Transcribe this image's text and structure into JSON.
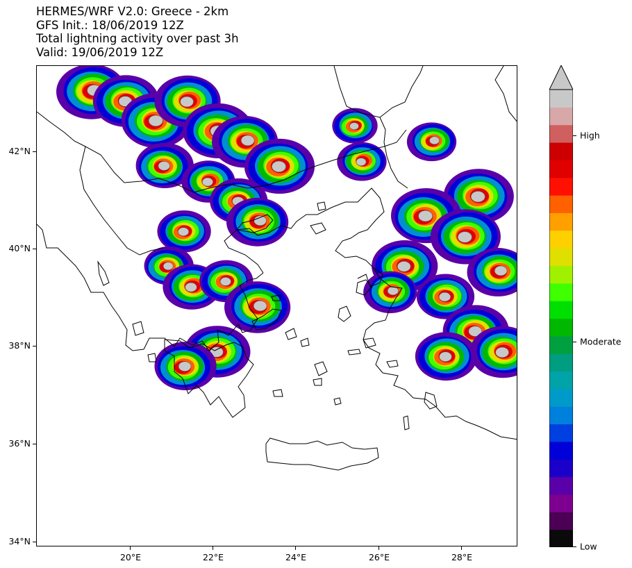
{
  "title": {
    "line1": "HERMES/WRF V2.0: Greece - 2km",
    "line2": "GFS Init.: 18/06/2019 12Z",
    "line3": "Total lightning activity over past 3h",
    "line4": "Valid: 19/06/2019 12Z"
  },
  "map": {
    "lat_labels": [
      "42°N",
      "40°N",
      "38°N",
      "36°N",
      "34°N"
    ],
    "lon_labels": [
      "20°E",
      "22°E",
      "24°E",
      "26°E",
      "28°E"
    ],
    "cells": [
      {
        "lon": 19.1,
        "lat": 43.1,
        "level": 1.0
      },
      {
        "lon": 19.9,
        "lat": 42.9,
        "level": 0.9
      },
      {
        "lon": 20.6,
        "lat": 42.5,
        "level": 1.0
      },
      {
        "lon": 21.4,
        "lat": 42.9,
        "level": 0.9
      },
      {
        "lon": 22.1,
        "lat": 42.3,
        "level": 1.0
      },
      {
        "lon": 22.8,
        "lat": 42.1,
        "level": 0.9
      },
      {
        "lon": 23.6,
        "lat": 41.6,
        "level": 1.0
      },
      {
        "lon": 20.8,
        "lat": 41.6,
        "level": 0.7
      },
      {
        "lon": 21.9,
        "lat": 41.3,
        "level": 0.6
      },
      {
        "lon": 22.6,
        "lat": 40.9,
        "level": 0.7
      },
      {
        "lon": 23.1,
        "lat": 40.5,
        "level": 0.8
      },
      {
        "lon": 21.3,
        "lat": 40.3,
        "level": 0.6
      },
      {
        "lon": 20.9,
        "lat": 39.6,
        "level": 0.5
      },
      {
        "lon": 21.5,
        "lat": 39.2,
        "level": 0.7
      },
      {
        "lon": 22.3,
        "lat": 39.3,
        "level": 0.6
      },
      {
        "lon": 23.1,
        "lat": 38.8,
        "level": 0.9
      },
      {
        "lon": 22.1,
        "lat": 37.9,
        "level": 0.9
      },
      {
        "lon": 21.3,
        "lat": 37.6,
        "level": 0.8
      },
      {
        "lon": 25.6,
        "lat": 41.7,
        "level": 0.5
      },
      {
        "lon": 25.4,
        "lat": 42.4,
        "level": 0.4
      },
      {
        "lon": 27.3,
        "lat": 42.1,
        "level": 0.5
      },
      {
        "lon": 28.4,
        "lat": 41.0,
        "level": 1.0
      },
      {
        "lon": 27.1,
        "lat": 40.6,
        "level": 1.0
      },
      {
        "lon": 28.1,
        "lat": 40.2,
        "level": 1.0
      },
      {
        "lon": 26.6,
        "lat": 39.6,
        "level": 0.9
      },
      {
        "lon": 28.9,
        "lat": 39.5,
        "level": 0.8
      },
      {
        "lon": 27.6,
        "lat": 39.0,
        "level": 0.7
      },
      {
        "lon": 28.3,
        "lat": 38.3,
        "level": 0.9
      },
      {
        "lon": 29.0,
        "lat": 37.9,
        "level": 0.9
      },
      {
        "lon": 27.6,
        "lat": 37.8,
        "level": 0.8
      },
      {
        "lon": 26.3,
        "lat": 39.1,
        "level": 0.6
      }
    ]
  },
  "colorbar": {
    "labels": {
      "high": "High",
      "moderate": "Moderate",
      "low": "Low"
    },
    "colors": [
      "#0a0a0a",
      "#4b0055",
      "#7e0090",
      "#5a00a8",
      "#1a00c8",
      "#0000d8",
      "#0040e0",
      "#0080dd",
      "#009aca",
      "#00a3a8",
      "#009d80",
      "#00a040",
      "#00b800",
      "#00e000",
      "#40ff00",
      "#a0f000",
      "#e0e000",
      "#ffd000",
      "#ffa000",
      "#ff6000",
      "#ff1000",
      "#e00000",
      "#cc0000",
      "#d06060",
      "#d8a8a8",
      "#c8c8c8"
    ],
    "extend_color": "#c8c8c8"
  },
  "colors": {
    "cloud_fill": "#c8c8c8",
    "coastline": "#000000"
  }
}
